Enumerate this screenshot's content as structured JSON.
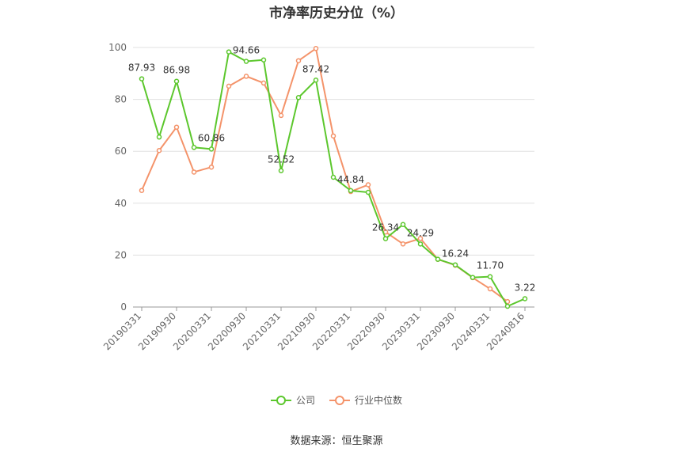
{
  "chart_data": {
    "type": "line",
    "title": "市净率历史分位（%）",
    "xlabel": "",
    "ylabel": "",
    "ylim": [
      0,
      100
    ],
    "yticks": [
      0,
      20,
      40,
      60,
      80,
      100
    ],
    "x": [
      "20190331",
      "20190630",
      "20190930",
      "20191231",
      "20200331",
      "20200630",
      "20200930",
      "20201231",
      "20210331",
      "20210630",
      "20210930",
      "20211231",
      "20220331",
      "20220630",
      "20220930",
      "20221231",
      "20230331",
      "20230630",
      "20230930",
      "20231231",
      "20240331",
      "20240630",
      "20240816"
    ],
    "x_tick_labels": [
      "20190331",
      "20190930",
      "20200331",
      "20200930",
      "20210331",
      "20210930",
      "20220331",
      "20220930",
      "20230331",
      "20230930",
      "20240331",
      "20240816"
    ],
    "series": [
      {
        "name": "公司",
        "color": "#5cc72d",
        "values": [
          87.93,
          65.5,
          86.98,
          61.5,
          60.86,
          98.3,
          94.66,
          95.2,
          52.52,
          80.7,
          87.42,
          50.0,
          44.84,
          44.2,
          26.34,
          31.8,
          24.29,
          18.4,
          16.24,
          11.4,
          11.7,
          0.3,
          3.22
        ]
      },
      {
        "name": "行业中位数",
        "color": "#f4936a",
        "values": [
          44.9,
          60.3,
          69.3,
          52.0,
          53.9,
          85.1,
          88.9,
          86.3,
          73.8,
          94.9,
          99.6,
          65.9,
          44.5,
          47.1,
          28.9,
          24.3,
          26.4,
          18.4,
          16.1,
          11.3,
          7.0,
          2.1,
          null
        ]
      }
    ],
    "point_labels": [
      {
        "series": "公司",
        "x": "20190331",
        "text": "87.93"
      },
      {
        "series": "公司",
        "x": "20190930",
        "text": "86.98"
      },
      {
        "series": "公司",
        "x": "20200331",
        "text": "60.86"
      },
      {
        "series": "公司",
        "x": "20200930",
        "text": "94.66"
      },
      {
        "series": "公司",
        "x": "20210331",
        "text": "52.52"
      },
      {
        "series": "公司",
        "x": "20210930",
        "text": "87.42"
      },
      {
        "series": "公司",
        "x": "20220331",
        "text": "44.84"
      },
      {
        "series": "公司",
        "x": "20220930",
        "text": "26.34"
      },
      {
        "series": "公司",
        "x": "20230331",
        "text": "24.29"
      },
      {
        "series": "公司",
        "x": "20230930",
        "text": "16.24"
      },
      {
        "series": "公司",
        "x": "20240331",
        "text": "11.70"
      },
      {
        "series": "公司",
        "x": "20240816",
        "text": "3.22"
      }
    ],
    "grid": true,
    "legend_position": "bottom"
  },
  "legend": [
    {
      "label": "公司",
      "color": "#5cc72d"
    },
    {
      "label": "行业中位数",
      "color": "#f4936a"
    }
  ],
  "source": "数据来源：恒生聚源"
}
